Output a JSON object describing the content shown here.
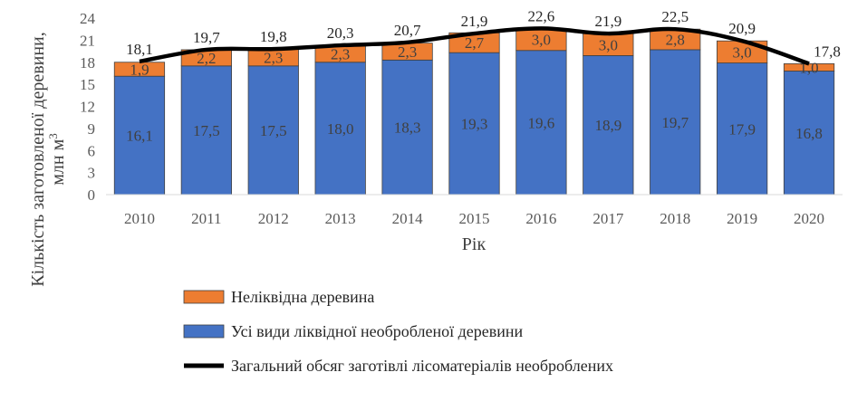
{
  "chart_data": {
    "type": "bar",
    "stacked": true,
    "categories": [
      "2010",
      "2011",
      "2012",
      "2013",
      "2014",
      "2015",
      "2016",
      "2017",
      "2018",
      "2019",
      "2020"
    ],
    "series": [
      {
        "name": "Усі види ліквідної необробленої деревини",
        "type": "bar",
        "values": [
          16.1,
          17.5,
          17.5,
          18.0,
          18.3,
          19.3,
          19.6,
          18.9,
          19.7,
          17.9,
          16.8
        ],
        "labels": [
          "16,1",
          "17,5",
          "17,5",
          "18,0",
          "18,3",
          "19,3",
          "19,6",
          "18,9",
          "19,7",
          "17,9",
          "16,8"
        ],
        "color": "#4472C4"
      },
      {
        "name": "Неліквідна деревина",
        "type": "bar",
        "values": [
          1.9,
          2.2,
          2.3,
          2.3,
          2.3,
          2.7,
          3.0,
          3.0,
          2.8,
          3.0,
          1.0
        ],
        "labels": [
          "1,9",
          "2,2",
          "2,3",
          "2,3",
          "2,3",
          "2,7",
          "3,0",
          "3,0",
          "2,8",
          "3,0",
          "1,0"
        ],
        "color": "#ED7D31"
      },
      {
        "name": "Загальний обсяг заготівлі лісоматеріалів необроблених",
        "type": "line",
        "values": [
          18.1,
          19.7,
          19.8,
          20.3,
          20.7,
          21.9,
          22.6,
          21.9,
          22.5,
          20.9,
          17.8
        ],
        "labels": [
          "18,1",
          "19,7",
          "19,8",
          "20,3",
          "20,7",
          "21,9",
          "22,6",
          "21,9",
          "22,5",
          "20,9",
          "17,8"
        ],
        "color": "#000000"
      }
    ],
    "xlabel": "Рік",
    "ylabel": "Кількість заготовленої деревини,",
    "ylabel_unit": "млн м",
    "ylabel_unit_sup": "3",
    "ylim": [
      0,
      24
    ],
    "yticks": [
      "0",
      "3",
      "6",
      "9",
      "12",
      "15",
      "18",
      "21",
      "24"
    ],
    "legend_position": "bottom",
    "legend_order": [
      1,
      0,
      2
    ]
  }
}
